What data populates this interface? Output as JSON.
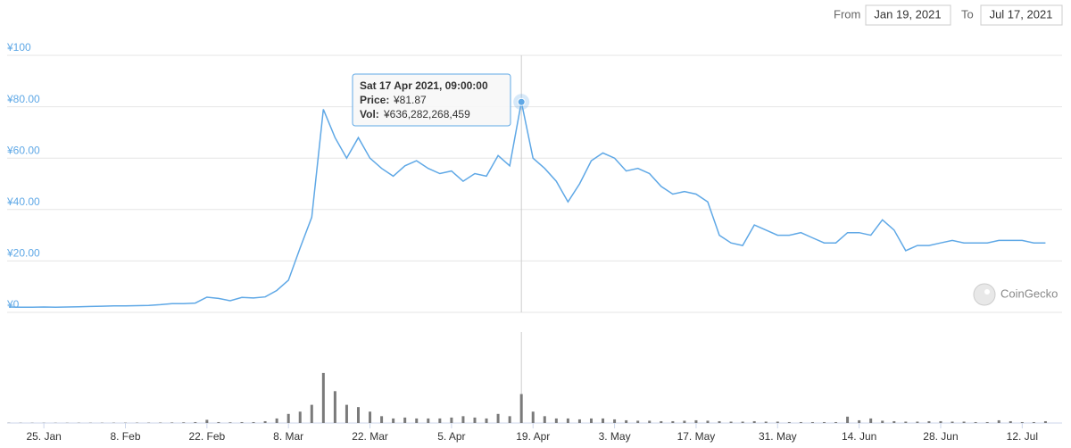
{
  "header": {
    "from_label": "From",
    "from": "Jan 19, 2021",
    "to_label": "To",
    "to": "Jul 17, 2021"
  },
  "chart_data": {
    "type": "line",
    "x": [
      "2021-01-19",
      "2021-01-21",
      "2021-01-23",
      "2021-01-25",
      "2021-01-27",
      "2021-01-29",
      "2021-01-31",
      "2021-02-02",
      "2021-02-04",
      "2021-02-06",
      "2021-02-08",
      "2021-02-10",
      "2021-02-12",
      "2021-02-14",
      "2021-02-16",
      "2021-02-18",
      "2021-02-20",
      "2021-02-22",
      "2021-02-24",
      "2021-02-26",
      "2021-02-28",
      "2021-03-02",
      "2021-03-04",
      "2021-03-06",
      "2021-03-08",
      "2021-03-10",
      "2021-03-12",
      "2021-03-14",
      "2021-03-16",
      "2021-03-18",
      "2021-03-20",
      "2021-03-22",
      "2021-03-24",
      "2021-03-26",
      "2021-03-28",
      "2021-03-30",
      "2021-04-01",
      "2021-04-03",
      "2021-04-05",
      "2021-04-07",
      "2021-04-09",
      "2021-04-11",
      "2021-04-13",
      "2021-04-15",
      "2021-04-17",
      "2021-04-19",
      "2021-04-21",
      "2021-04-23",
      "2021-04-25",
      "2021-04-27",
      "2021-04-29",
      "2021-05-01",
      "2021-05-03",
      "2021-05-05",
      "2021-05-07",
      "2021-05-09",
      "2021-05-11",
      "2021-05-13",
      "2021-05-15",
      "2021-05-17",
      "2021-05-19",
      "2021-05-21",
      "2021-05-23",
      "2021-05-25",
      "2021-05-27",
      "2021-05-29",
      "2021-05-31",
      "2021-06-02",
      "2021-06-04",
      "2021-06-06",
      "2021-06-08",
      "2021-06-10",
      "2021-06-12",
      "2021-06-14",
      "2021-06-16",
      "2021-06-18",
      "2021-06-20",
      "2021-06-22",
      "2021-06-24",
      "2021-06-26",
      "2021-06-28",
      "2021-06-30",
      "2021-07-02",
      "2021-07-04",
      "2021-07-06",
      "2021-07-08",
      "2021-07-10",
      "2021-07-12",
      "2021-07-14",
      "2021-07-16"
    ],
    "series": [
      {
        "color": "#5fa8e6",
        "values": [
          2.1,
          2.0,
          2.0,
          2.1,
          2.0,
          2.1,
          2.2,
          2.3,
          2.4,
          2.5,
          2.5,
          2.6,
          2.7,
          3.0,
          3.4,
          3.4,
          3.6,
          5.9,
          5.4,
          4.5,
          5.8,
          5.6,
          6.0,
          8.5,
          12.5,
          25,
          37,
          79,
          68,
          60,
          68,
          60,
          56,
          53,
          57,
          59,
          56,
          54,
          55,
          51,
          54,
          53,
          61,
          57,
          81.87,
          60,
          56,
          51,
          43,
          50,
          59,
          62,
          60,
          55,
          56,
          54,
          49,
          46,
          47,
          46,
          43,
          30,
          27,
          26,
          34,
          32,
          30,
          30,
          31,
          29,
          27,
          27,
          31,
          31,
          30,
          36,
          32,
          24,
          26,
          26,
          27,
          28,
          27,
          27,
          27,
          28,
          28,
          28,
          27,
          27
        ]
      },
      {
        "color": "#7a7a7a",
        "axis": "y2",
        "values": [
          5000000000,
          5000000000,
          5000000000,
          5000000000,
          5000000000,
          5000000000,
          6000000000,
          6000000000,
          6000000000,
          7000000000,
          7000000000,
          8000000000,
          8000000000,
          10000000000,
          12000000000,
          15000000000,
          20000000000,
          70000000000,
          20000000000,
          15000000000,
          20000000000,
          20000000000,
          40000000000,
          100000000000,
          200000000000,
          250000000000,
          400000000000,
          1100000000000,
          700000000000,
          400000000000,
          350000000000,
          250000000000,
          150000000000,
          100000000000,
          120000000000,
          100000000000,
          100000000000,
          100000000000,
          120000000000,
          150000000000,
          120000000000,
          100000000000,
          200000000000,
          150000000000,
          636282268459,
          250000000000,
          150000000000,
          100000000000,
          100000000000,
          80000000000,
          100000000000,
          100000000000,
          80000000000,
          60000000000,
          50000000000,
          50000000000,
          40000000000,
          40000000000,
          50000000000,
          60000000000,
          50000000000,
          40000000000,
          30000000000,
          30000000000,
          40000000000,
          30000000000,
          30000000000,
          20000000000,
          20000000000,
          20000000000,
          20000000000,
          20000000000,
          140000000000,
          60000000000,
          100000000000,
          50000000000,
          40000000000,
          30000000000,
          30000000000,
          40000000000,
          40000000000,
          30000000000,
          30000000000,
          20000000000,
          20000000000,
          60000000000,
          40000000000,
          20000000000,
          20000000000,
          40000000000
        ]
      }
    ],
    "xlim": [
      "2021-01-19",
      "2021-07-19"
    ],
    "xticks": [
      {
        "value": "2021-01-25",
        "label": "25. Jan"
      },
      {
        "value": "2021-02-08",
        "label": "8. Feb"
      },
      {
        "value": "2021-02-22",
        "label": "22. Feb"
      },
      {
        "value": "2021-03-08",
        "label": "8. Mar"
      },
      {
        "value": "2021-03-22",
        "label": "22. Mar"
      },
      {
        "value": "2021-04-05",
        "label": "5. Apr"
      },
      {
        "value": "2021-04-19",
        "label": "19. Apr"
      },
      {
        "value": "2021-05-03",
        "label": "3. May"
      },
      {
        "value": "2021-05-17",
        "label": "17. May"
      },
      {
        "value": "2021-05-31",
        "label": "31. May"
      },
      {
        "value": "2021-06-14",
        "label": "14. Jun"
      },
      {
        "value": "2021-06-28",
        "label": "28. Jun"
      },
      {
        "value": "2021-07-12",
        "label": "12. Jul"
      }
    ],
    "ylim": [
      0,
      100
    ],
    "yticks": [
      {
        "value": 0,
        "label": "¥0"
      },
      {
        "value": 20,
        "label": "¥20.00"
      },
      {
        "value": 40,
        "label": "¥40.00"
      },
      {
        "value": 60,
        "label": "¥60.00"
      },
      {
        "value": 80,
        "label": "¥80.00"
      },
      {
        "value": 100,
        "label": "¥100"
      }
    ],
    "y2lim": [
      0,
      2000000000000
    ],
    "grid": true,
    "tooltip": {
      "index": 44,
      "date": "Sat 17 Apr 2021, 09:00:00",
      "price_label": "Price:",
      "price": "¥81.87",
      "volume_label": "Vol:",
      "volume": "¥636,282,268,459"
    },
    "watermark": "CoinGecko"
  }
}
